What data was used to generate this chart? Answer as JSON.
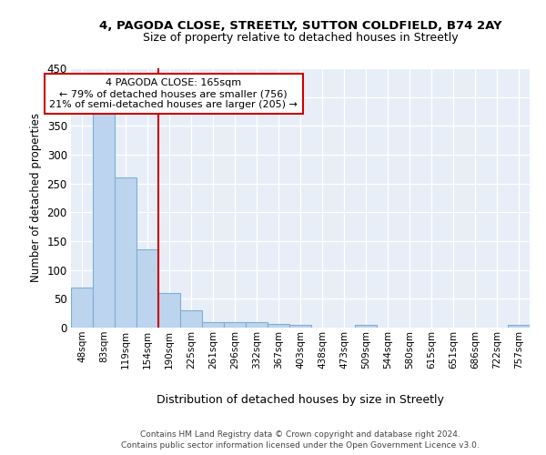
{
  "title1": "4, PAGODA CLOSE, STREETLY, SUTTON COLDFIELD, B74 2AY",
  "title2": "Size of property relative to detached houses in Streetly",
  "xlabel": "Distribution of detached houses by size in Streetly",
  "ylabel": "Number of detached properties",
  "categories": [
    "48sqm",
    "83sqm",
    "119sqm",
    "154sqm",
    "190sqm",
    "225sqm",
    "261sqm",
    "296sqm",
    "332sqm",
    "367sqm",
    "403sqm",
    "438sqm",
    "473sqm",
    "509sqm",
    "544sqm",
    "580sqm",
    "615sqm",
    "651sqm",
    "686sqm",
    "722sqm",
    "757sqm"
  ],
  "values": [
    70,
    378,
    261,
    136,
    60,
    30,
    10,
    9,
    10,
    6,
    5,
    0,
    0,
    4,
    0,
    0,
    0,
    0,
    0,
    0,
    4
  ],
  "bar_color": "#bdd4ee",
  "bar_edge_color": "#7bafd4",
  "vline_x": 3.5,
  "vline_color": "#cc0000",
  "ann_line1": "4 PAGODA CLOSE: 165sqm",
  "ann_line2": "← 79% of detached houses are smaller (756)",
  "ann_line3": "21% of semi-detached houses are larger (205) →",
  "ylim": [
    0,
    450
  ],
  "yticks": [
    0,
    50,
    100,
    150,
    200,
    250,
    300,
    350,
    400,
    450
  ],
  "bg_color": "#e8eef8",
  "grid_color": "white",
  "footnote1": "Contains HM Land Registry data © Crown copyright and database right 2024.",
  "footnote2": "Contains public sector information licensed under the Open Government Licence v3.0."
}
